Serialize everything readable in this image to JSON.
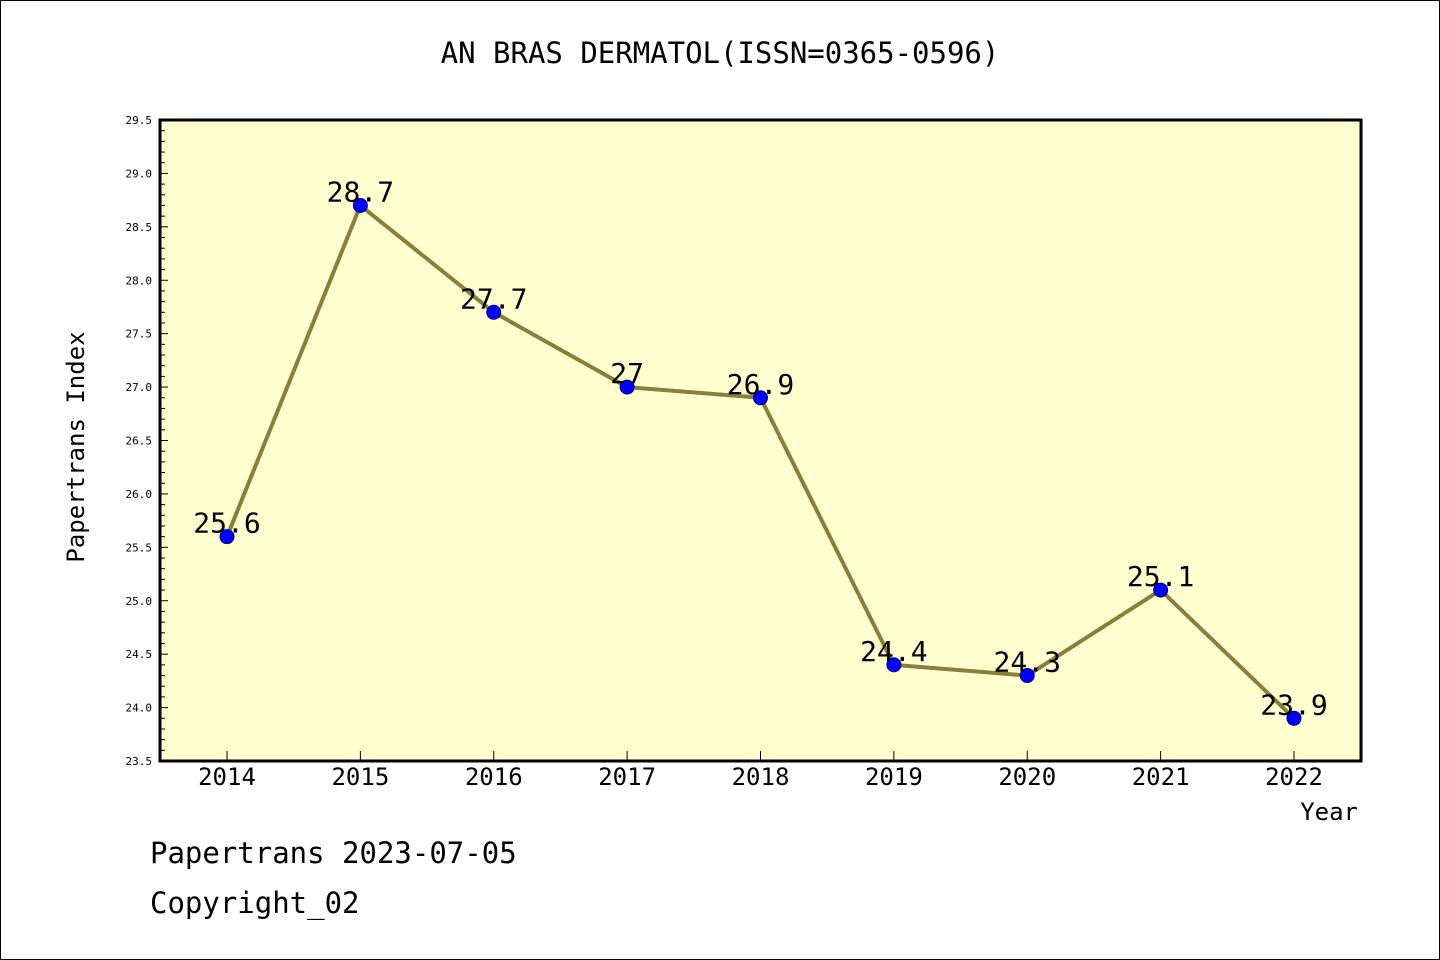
{
  "header": {
    "title": "AN BRAS DERMATOL(ISSN=0365-0596)"
  },
  "footer": {
    "line1": "Papertrans 2023-07-05",
    "line2": "Copyright_02"
  },
  "colors": {
    "plot_bg": "#FFFFD0",
    "line": "#8B7D3A",
    "marker": "#0000FF"
  },
  "chart_data": {
    "type": "line",
    "title": "AN BRAS DERMATOL(ISSN=0365-0596)",
    "xlabel": "Year",
    "ylabel": "Papertrans Index",
    "categories": [
      "2014",
      "2015",
      "2016",
      "2017",
      "2018",
      "2019",
      "2020",
      "2021",
      "2022"
    ],
    "series": [
      {
        "values": [
          25.6,
          28.7,
          27.7,
          27,
          26.9,
          24.4,
          24.3,
          25.1,
          23.9
        ]
      }
    ],
    "data_labels": [
      "25.6",
      "28.7",
      "27.7",
      "27",
      "26.9",
      "24.4",
      "24.3",
      "25.1",
      "23.9"
    ],
    "ylim": [
      23.5,
      29.5
    ],
    "yticks": [
      "23.5",
      "24.0",
      "24.5",
      "25.0",
      "25.5",
      "26.0",
      "26.5",
      "27.0",
      "27.5",
      "28.0",
      "28.5",
      "29.0",
      "29.5"
    ],
    "grid": false,
    "legend": "none"
  }
}
